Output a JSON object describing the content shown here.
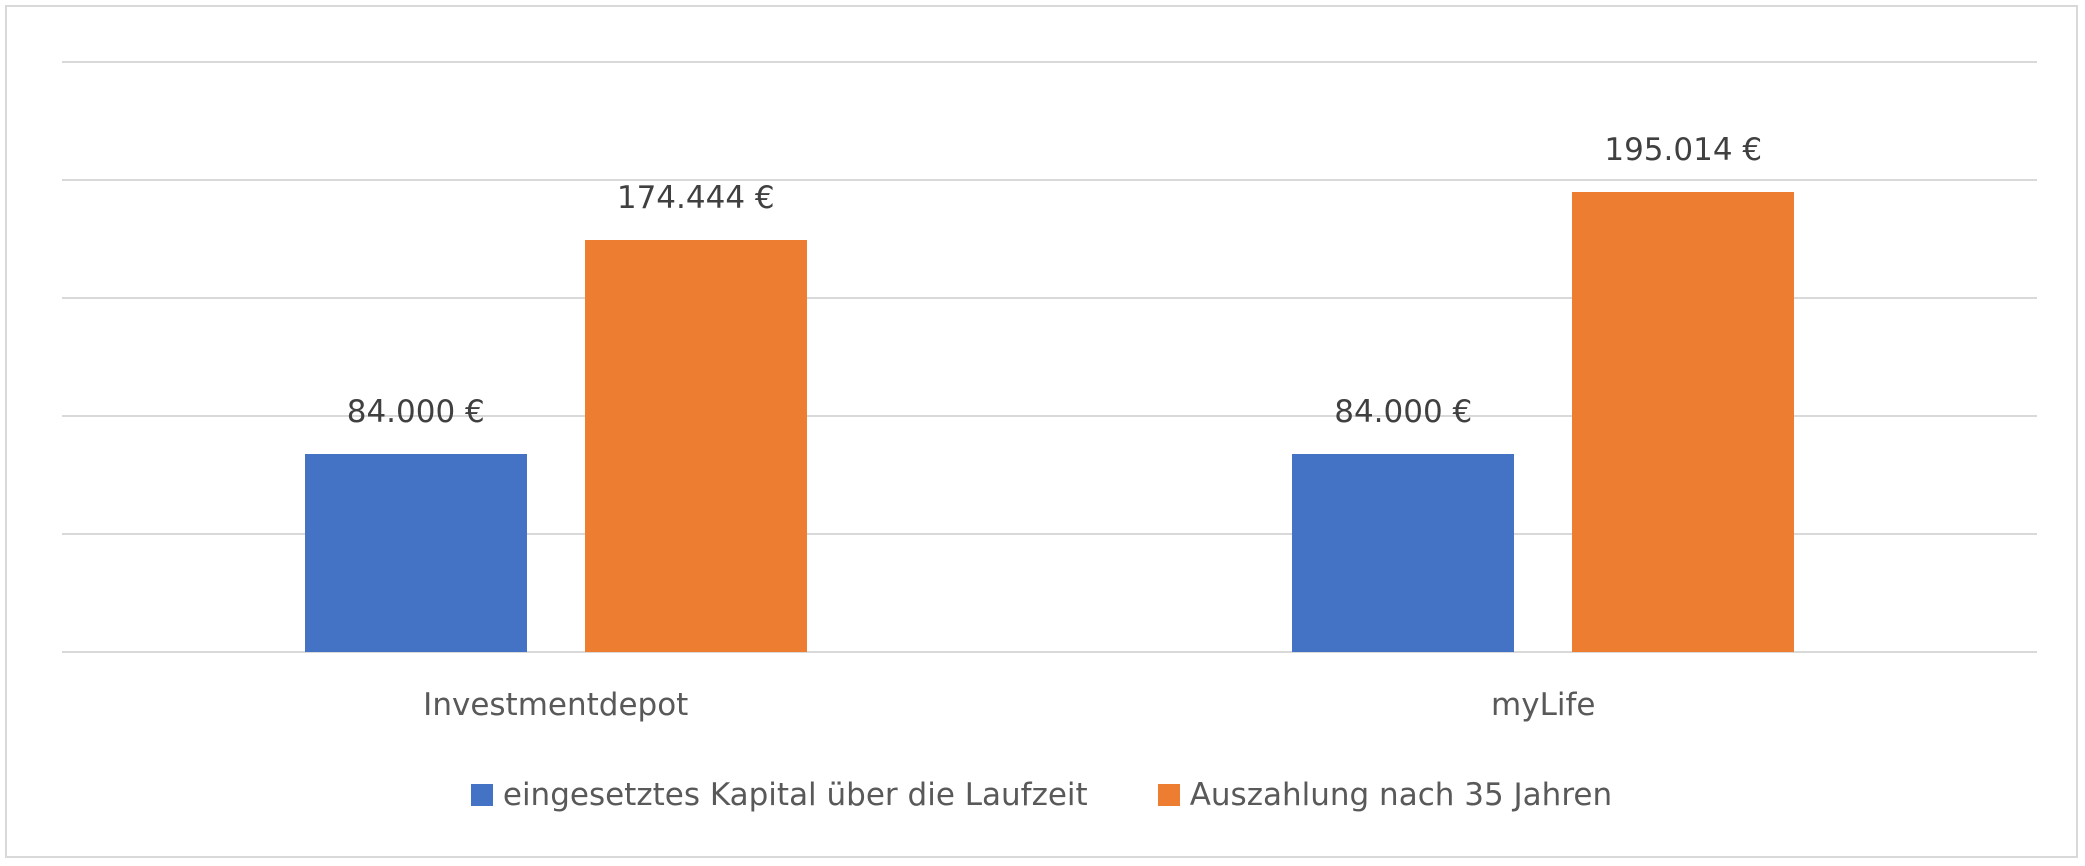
{
  "chart_data": {
    "type": "bar",
    "title": "",
    "xlabel": "",
    "ylabel": "",
    "categories": [
      "Investmentdepot",
      "myLife"
    ],
    "series": [
      {
        "name": "eingesetztes Kapital über die Laufzeit",
        "color": "#4472c4",
        "values": [
          84000,
          84000
        ],
        "labels": [
          "84.000 €",
          "84.000 €"
        ]
      },
      {
        "name": "Auszahlung nach 35 Jahren",
        "color": "#ed7d31",
        "values": [
          174444,
          195014
        ],
        "labels": [
          "174.444 €",
          "195.014 €"
        ]
      }
    ],
    "ylim": [
      0,
      250000
    ],
    "y_gridlines": [
      0,
      50000,
      100000,
      150000,
      200000,
      250000
    ],
    "y_tick_labels_visible": false,
    "grid": true,
    "legend_position": "bottom"
  }
}
